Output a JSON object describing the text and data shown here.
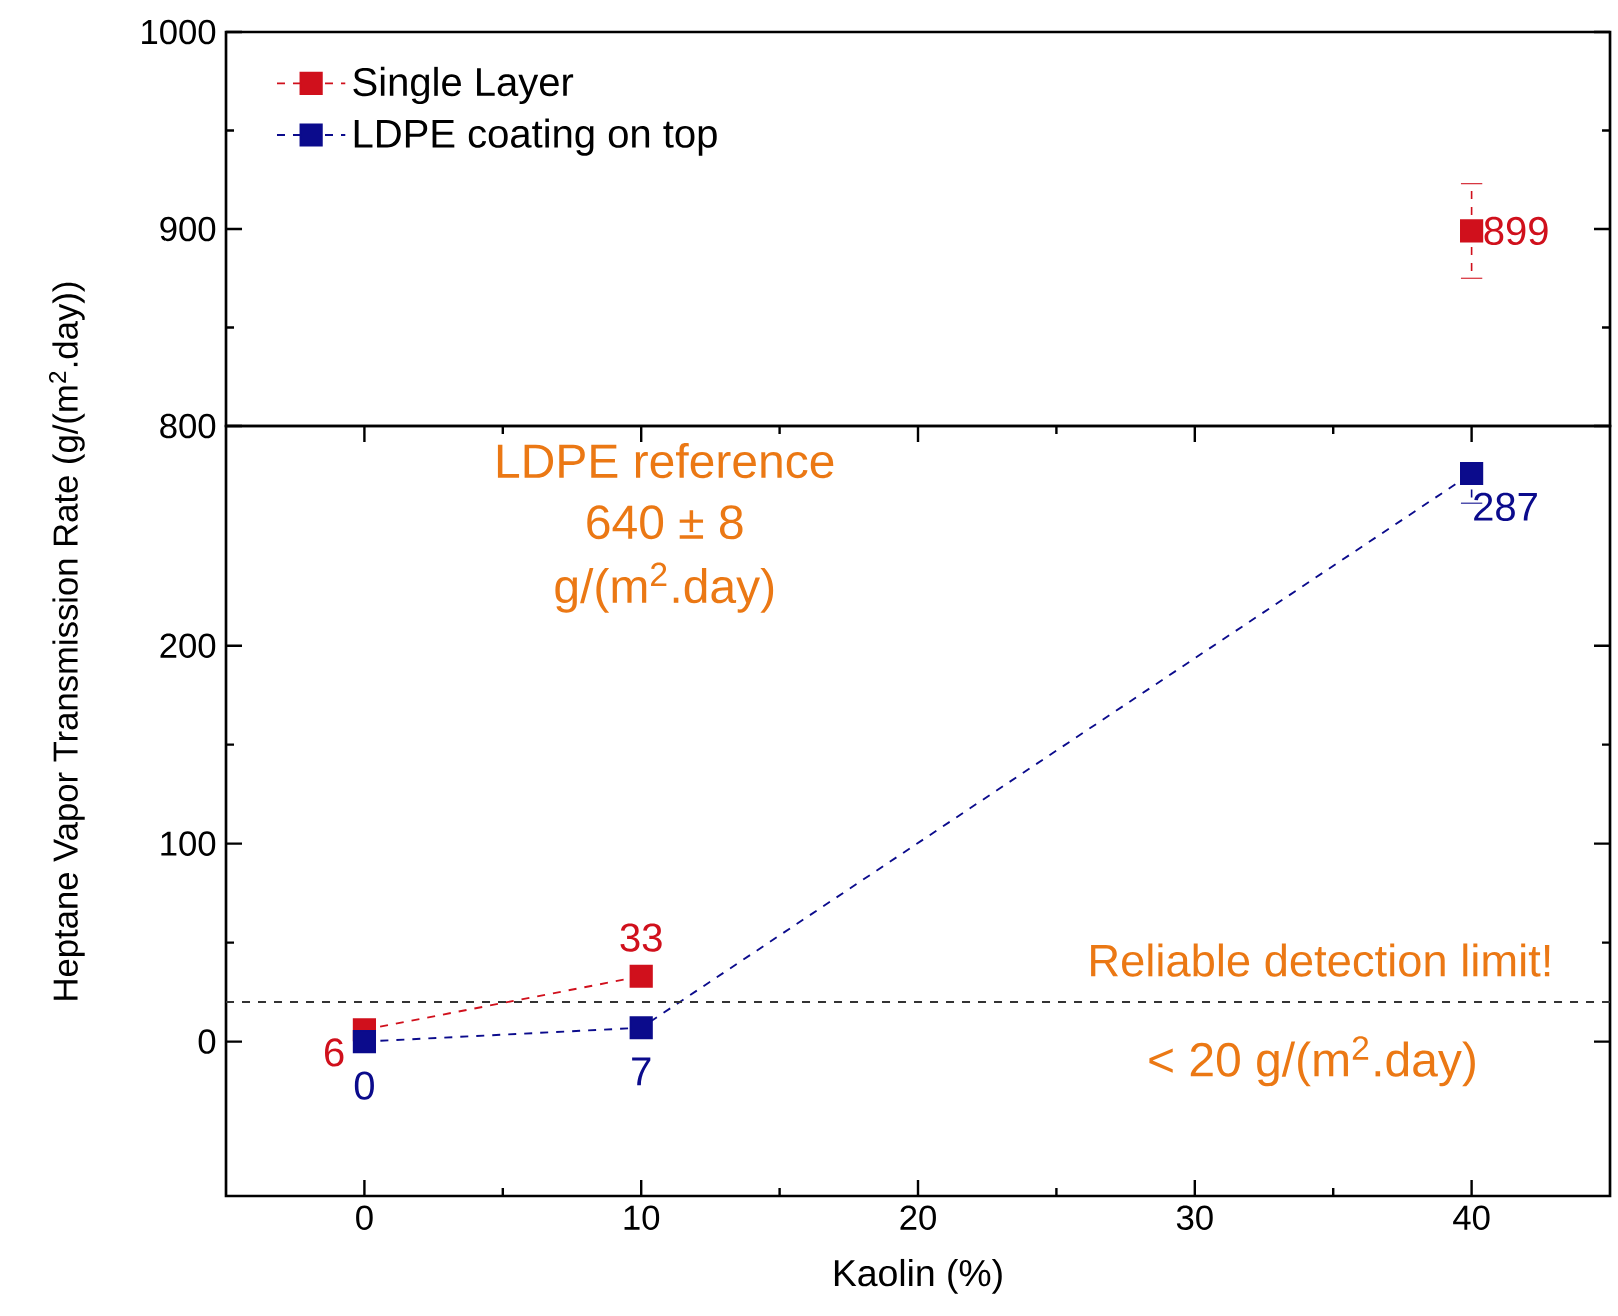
{
  "chart_data": [
    {
      "type": "line",
      "x": [
        40
      ],
      "xlim": [
        -5,
        45
      ],
      "ylim": [
        800,
        1000
      ],
      "yticks": [
        800,
        900,
        1000
      ],
      "tick_labels": "y",
      "marker": "square",
      "line_style": "dashed",
      "legend": "top left",
      "data_labels": true,
      "series": [
        {
          "name": "Single Layer",
          "color": "#d0101c",
          "values": [
            899
          ],
          "errors": [
            24
          ]
        },
        {
          "name": "LDPE coating on top",
          "color": "#0b0b8c",
          "values": [
            null
          ]
        }
      ]
    },
    {
      "type": "line",
      "x": [
        0,
        10,
        40
      ],
      "xlim": [
        -5,
        45
      ],
      "xticks": [
        0,
        10,
        20,
        30,
        40
      ],
      "ylim": [
        -78,
        311
      ],
      "yticks": [
        0,
        100,
        200
      ],
      "xlabel": "Kaolin (%)",
      "ylabel": "Heptane Vapor Transmission Rate (g/(m$^{2}$.day))",
      "marker": "square",
      "line_style": "dashed",
      "data_labels": true,
      "series": [
        {
          "color": "#d0101c",
          "values": [
            6,
            33,
            null
          ]
        },
        {
          "color": "#0b0b8c",
          "values": [
            0,
            7,
            287
          ],
          "errors": [
            null,
            null,
            [
              272,
              287
            ]
          ]
        }
      ],
      "ref_lines": [
        {
          "axis": "y",
          "value": 20,
          "label": "Reliable detection limit!",
          "color": "#333333",
          "line_style": "dashed"
        }
      ],
      "annotations": [
        "LDPE reference",
        "640 ± 8",
        "g/(m$^{2}$.day)",
        "< 20 g/(m$^{2}$.day)"
      ]
    }
  ]
}
